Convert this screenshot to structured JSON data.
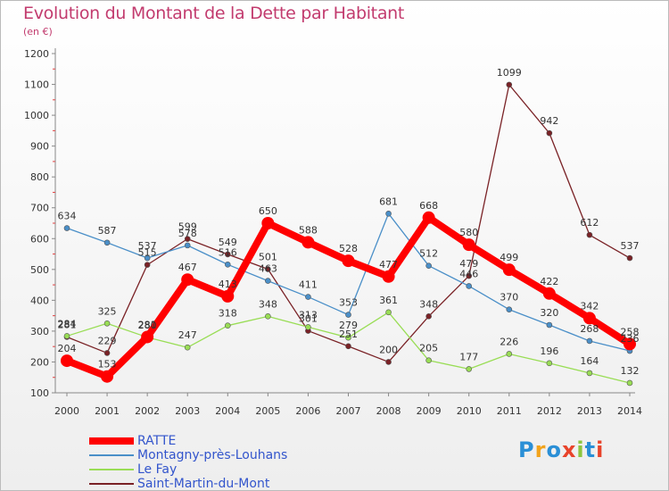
{
  "title": "Evolution du Montant de la Dette par Habitant",
  "subtitle": "(en €)",
  "logo": {
    "text": "Proxiti",
    "colors": [
      "#2a8fd6",
      "#f2a31b",
      "#2a8fd6",
      "#e8432a",
      "#8dc63f",
      "#2a8fd6",
      "#e8432a"
    ]
  },
  "chart_data": {
    "type": "line",
    "title": "Evolution du Montant de la Dette par Habitant",
    "ylabel": "(en €)",
    "xlabel": "",
    "ylim": [
      100,
      1200
    ],
    "yticks": [
      100,
      200,
      300,
      400,
      500,
      600,
      700,
      800,
      900,
      1000,
      1100,
      1200
    ],
    "x": [
      2000,
      2001,
      2002,
      2003,
      2004,
      2005,
      2006,
      2007,
      2008,
      2009,
      2010,
      2011,
      2012,
      2013,
      2014
    ],
    "grid": false,
    "legend_position": "bottom-left",
    "series": [
      {
        "name": "RATTE",
        "color": "#ff0000",
        "values": [
          204,
          153,
          281,
          467,
          413,
          650,
          588,
          528,
          477,
          668,
          580,
          499,
          422,
          342,
          258
        ]
      },
      {
        "name": "Montagny-près-Louhans",
        "color": "#4a8fc8",
        "values": [
          634,
          587,
          537,
          578,
          516,
          463,
          411,
          353,
          681,
          512,
          446,
          370,
          320,
          268,
          236
        ]
      },
      {
        "name": "Le Fay",
        "color": "#99dd55",
        "values": [
          284,
          325,
          280,
          247,
          318,
          348,
          313,
          279,
          361,
          205,
          177,
          226,
          196,
          164,
          132
        ]
      },
      {
        "name": "Saint-Martin-du-Mont",
        "color": "#7a2226",
        "values": [
          281,
          229,
          515,
          599,
          549,
          501,
          301,
          251,
          200,
          348,
          479,
          1099,
          942,
          612,
          537
        ]
      }
    ]
  }
}
